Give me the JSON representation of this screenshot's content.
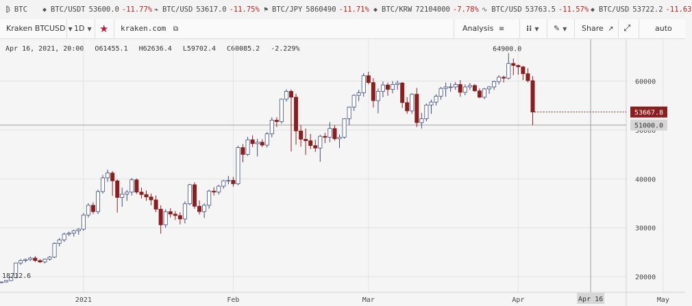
{
  "ticker": [
    {
      "icon": "btc-icon",
      "symbol": "BTC",
      "price": "",
      "change": ""
    },
    {
      "icon": "diamond-icon",
      "symbol": "BTC/USDT",
      "price": "53600.0",
      "change": "-11.77%"
    },
    {
      "icon": "leaf-icon",
      "symbol": "BTC/USD",
      "price": "53617.0",
      "change": "-11.75%"
    },
    {
      "icon": "flag-icon",
      "symbol": "BTC/JPY",
      "price": "5860490",
      "change": "-11.71%"
    },
    {
      "icon": "diamond-icon",
      "symbol": "BTC/KRW",
      "price": "72104000",
      "change": "-7.78%"
    },
    {
      "icon": "wave-icon",
      "symbol": "BTC/USD",
      "price": "53763.5",
      "change": "-11.57%"
    },
    {
      "icon": "diamond-icon",
      "symbol": "BTC/USD",
      "price": "53722.2",
      "change": "-11.63"
    }
  ],
  "toolbar": {
    "market": "Kraken BTCUSD",
    "interval": "1D",
    "exchange": "kraken.com",
    "analysis": "Analysis",
    "share": "Share",
    "scale": "auto"
  },
  "legend": {
    "date": "Apr 16, 2021, 20:00",
    "open": "O61455.1",
    "high": "H62636.4",
    "low": "L59702.4",
    "close": "C60085.2",
    "change": "-2.229%"
  },
  "colors": {
    "up": "#ffffff",
    "up_border": "#3c4a78",
    "down": "#8b1e1e",
    "accent": "#c0163a"
  },
  "chart_data": {
    "type": "candlestick",
    "y_ticks": [
      20000,
      30000,
      40000,
      50000,
      60000
    ],
    "ylim": [
      16800,
      68600
    ],
    "x_labels": [
      "2021",
      "Feb",
      "Mar",
      "Apr",
      "May"
    ],
    "x_label_days": [
      17,
      48,
      76,
      107,
      137
    ],
    "crosshair_label": "Apr 16",
    "crosshair_day": 122,
    "price_label": "53667.8",
    "price_line": 53667.8,
    "hover_label": "51000.0",
    "hover_line": 51000,
    "max_label": "64900.0",
    "min_label": "18712.6",
    "candles": [
      [
        0,
        18800,
        19000,
        18700,
        18900
      ],
      [
        1,
        18900,
        19300,
        18800,
        19200
      ],
      [
        2,
        19200,
        20000,
        19100,
        19800
      ],
      [
        3,
        19800,
        22900,
        19600,
        22800
      ],
      [
        4,
        22800,
        23600,
        22400,
        23300
      ],
      [
        5,
        23300,
        23700,
        22900,
        23500
      ],
      [
        6,
        23500,
        24100,
        23200,
        23800
      ],
      [
        7,
        23800,
        24200,
        23000,
        23300
      ],
      [
        8,
        23300,
        23600,
        22800,
        23000
      ],
      [
        9,
        23000,
        23700,
        22700,
        23600
      ],
      [
        10,
        23600,
        24200,
        23300,
        24000
      ],
      [
        11,
        24000,
        27000,
        23800,
        26800
      ],
      [
        12,
        26800,
        27900,
        26200,
        27500
      ],
      [
        13,
        27500,
        29000,
        27100,
        28700
      ],
      [
        14,
        28700,
        29200,
        28300,
        28900
      ],
      [
        15,
        28900,
        29600,
        28200,
        29400
      ],
      [
        16,
        29400,
        29900,
        28600,
        29700
      ],
      [
        17,
        29700,
        33000,
        29400,
        32600
      ],
      [
        18,
        32600,
        35000,
        32100,
        34600
      ],
      [
        19,
        34600,
        35200,
        32800,
        33300
      ],
      [
        20,
        33300,
        37800,
        32800,
        37400
      ],
      [
        21,
        37400,
        40800,
        37000,
        40200
      ],
      [
        22,
        40200,
        41900,
        39400,
        41200
      ],
      [
        23,
        41200,
        41600,
        36500,
        39600
      ],
      [
        24,
        39600,
        39900,
        33100,
        36200
      ],
      [
        25,
        36200,
        38200,
        34300,
        36900
      ],
      [
        26,
        36900,
        37700,
        35500,
        37300
      ],
      [
        27,
        37300,
        40200,
        36600,
        39800
      ],
      [
        28,
        39800,
        40100,
        36900,
        37300
      ],
      [
        29,
        37300,
        38200,
        36000,
        36800
      ],
      [
        30,
        36800,
        37600,
        35500,
        36300
      ],
      [
        31,
        36300,
        37000,
        34600,
        35700
      ],
      [
        32,
        35700,
        36600,
        33200,
        33800
      ],
      [
        33,
        33800,
        34600,
        28800,
        30600
      ],
      [
        34,
        30600,
        33800,
        30000,
        33300
      ],
      [
        35,
        33300,
        34000,
        32100,
        32800
      ],
      [
        36,
        32800,
        33400,
        31600,
        32500
      ],
      [
        37,
        32500,
        33200,
        30700,
        31800
      ],
      [
        38,
        31800,
        35400,
        30900,
        34900
      ],
      [
        39,
        34900,
        39000,
        34600,
        38800
      ],
      [
        40,
        38800,
        39300,
        33900,
        34400
      ],
      [
        41,
        34400,
        35600,
        32700,
        33300
      ],
      [
        42,
        33300,
        35000,
        32000,
        34600
      ],
      [
        43,
        34600,
        37800,
        33900,
        37500
      ],
      [
        44,
        37500,
        38300,
        36600,
        37300
      ],
      [
        45,
        37300,
        38800,
        36800,
        38500
      ],
      [
        46,
        38500,
        39800,
        38000,
        39600
      ],
      [
        47,
        39600,
        40600,
        38900,
        39700
      ],
      [
        48,
        39700,
        40400,
        38400,
        39000
      ],
      [
        49,
        39000,
        46800,
        38700,
        46400
      ],
      [
        50,
        46400,
        47100,
        43400,
        45000
      ],
      [
        51,
        45000,
        48600,
        44700,
        48000
      ],
      [
        52,
        48000,
        48900,
        46500,
        47200
      ],
      [
        53,
        47200,
        48200,
        44600,
        47500
      ],
      [
        54,
        47500,
        48100,
        46500,
        46900
      ],
      [
        55,
        46900,
        49600,
        46400,
        49200
      ],
      [
        56,
        49200,
        52600,
        48500,
        52000
      ],
      [
        57,
        52000,
        52600,
        50600,
        51700
      ],
      [
        58,
        51700,
        56400,
        51300,
        56300
      ],
      [
        59,
        56300,
        58300,
        55800,
        57900
      ],
      [
        60,
        57900,
        58300,
        45600,
        56700
      ],
      [
        61,
        56700,
        57400,
        47000,
        49800
      ],
      [
        62,
        49800,
        51000,
        46600,
        48100
      ],
      [
        63,
        48100,
        50300,
        44900,
        47800
      ],
      [
        64,
        47800,
        49200,
        46100,
        46800
      ],
      [
        65,
        46800,
        48000,
        45500,
        46300
      ],
      [
        66,
        46300,
        49000,
        43500,
        48700
      ],
      [
        67,
        48700,
        49400,
        47300,
        48500
      ],
      [
        68,
        48500,
        51600,
        47500,
        50300
      ],
      [
        69,
        50300,
        51000,
        47800,
        48200
      ],
      [
        70,
        48200,
        49100,
        46300,
        48500
      ],
      [
        71,
        48500,
        52400,
        48200,
        52300
      ],
      [
        72,
        52300,
        54800,
        51000,
        54700
      ],
      [
        73,
        54700,
        57300,
        53900,
        57100
      ],
      [
        74,
        57100,
        58200,
        55900,
        57600
      ],
      [
        75,
        57600,
        61600,
        56800,
        61100
      ],
      [
        76,
        61100,
        61900,
        59300,
        59700
      ],
      [
        77,
        59700,
        60600,
        54600,
        56000
      ],
      [
        78,
        56000,
        58500,
        53400,
        57900
      ],
      [
        79,
        57900,
        59900,
        56700,
        59200
      ],
      [
        80,
        59200,
        59700,
        57000,
        58300
      ],
      [
        81,
        58300,
        60000,
        57500,
        59300
      ],
      [
        82,
        59300,
        60100,
        58200,
        59600
      ],
      [
        83,
        59600,
        59800,
        54500,
        55600
      ],
      [
        84,
        55600,
        56700,
        53300,
        53900
      ],
      [
        85,
        53900,
        57500,
        53300,
        57300
      ],
      [
        86,
        57300,
        58600,
        50600,
        51500
      ],
      [
        87,
        51500,
        53500,
        50300,
        52300
      ],
      [
        88,
        52300,
        55400,
        51800,
        55100
      ],
      [
        89,
        55100,
        56200,
        53300,
        55700
      ],
      [
        90,
        55700,
        57300,
        55000,
        56900
      ],
      [
        91,
        56900,
        58800,
        56200,
        58500
      ],
      [
        92,
        58500,
        59700,
        56800,
        58800
      ],
      [
        93,
        58800,
        59600,
        57800,
        58800
      ],
      [
        94,
        58800,
        59800,
        58200,
        59300
      ],
      [
        95,
        59300,
        60200,
        56800,
        57700
      ],
      [
        96,
        57700,
        59300,
        57100,
        58800
      ],
      [
        97,
        58800,
        59600,
        58200,
        59100
      ],
      [
        98,
        59100,
        59400,
        57800,
        58000
      ],
      [
        99,
        58000,
        58500,
        56500,
        56700
      ],
      [
        100,
        56700,
        58600,
        56300,
        58400
      ],
      [
        101,
        58400,
        59000,
        57400,
        58800
      ],
      [
        102,
        58800,
        60100,
        58200,
        59900
      ],
      [
        103,
        59900,
        61200,
        59300,
        60800
      ],
      [
        104,
        60800,
        61100,
        59700,
        60600
      ],
      [
        105,
        60600,
        64900,
        60300,
        63600
      ],
      [
        106,
        63600,
        64600,
        61200,
        63200
      ],
      [
        107,
        63200,
        63400,
        61300,
        62900
      ],
      [
        108,
        62900,
        63100,
        60200,
        61500
      ],
      [
        109,
        61500,
        62636,
        59702,
        60085
      ],
      [
        110,
        60085,
        61000,
        51000,
        53668
      ]
    ]
  }
}
